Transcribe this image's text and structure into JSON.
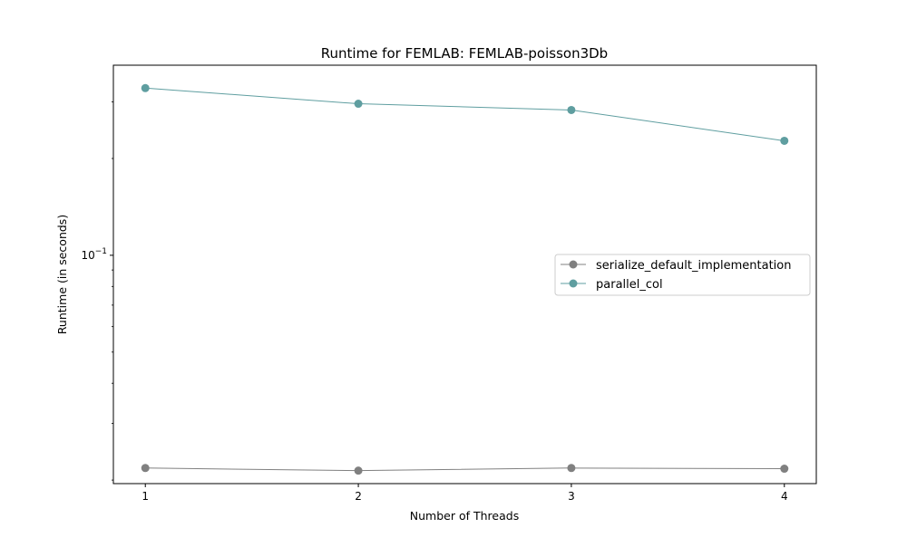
{
  "chart_data": {
    "type": "line",
    "title": "Runtime for FEMLAB: FEMLAB-poisson3Db",
    "xlabel": "Number of Threads",
    "ylabel": "Runtime (in seconds)",
    "x": [
      1,
      2,
      3,
      4
    ],
    "xticks": [
      "1",
      "2",
      "3",
      "4"
    ],
    "xlim": [
      0.85,
      4.15
    ],
    "yscale": "log",
    "ylim": [
      0.0195,
      0.39
    ],
    "yticks": [
      {
        "value": 0.1,
        "base": "10",
        "exponent": "−1"
      }
    ],
    "series": [
      {
        "name": "serialize_default_implementation",
        "values": [
          0.0218,
          0.0214,
          0.0218,
          0.0217
        ],
        "color": "#808080"
      },
      {
        "name": "parallel_col",
        "values": [
          0.331,
          0.296,
          0.283,
          0.227
        ],
        "color": "#5f9ea0"
      }
    ],
    "grid": false,
    "legend_position": "center-right"
  }
}
